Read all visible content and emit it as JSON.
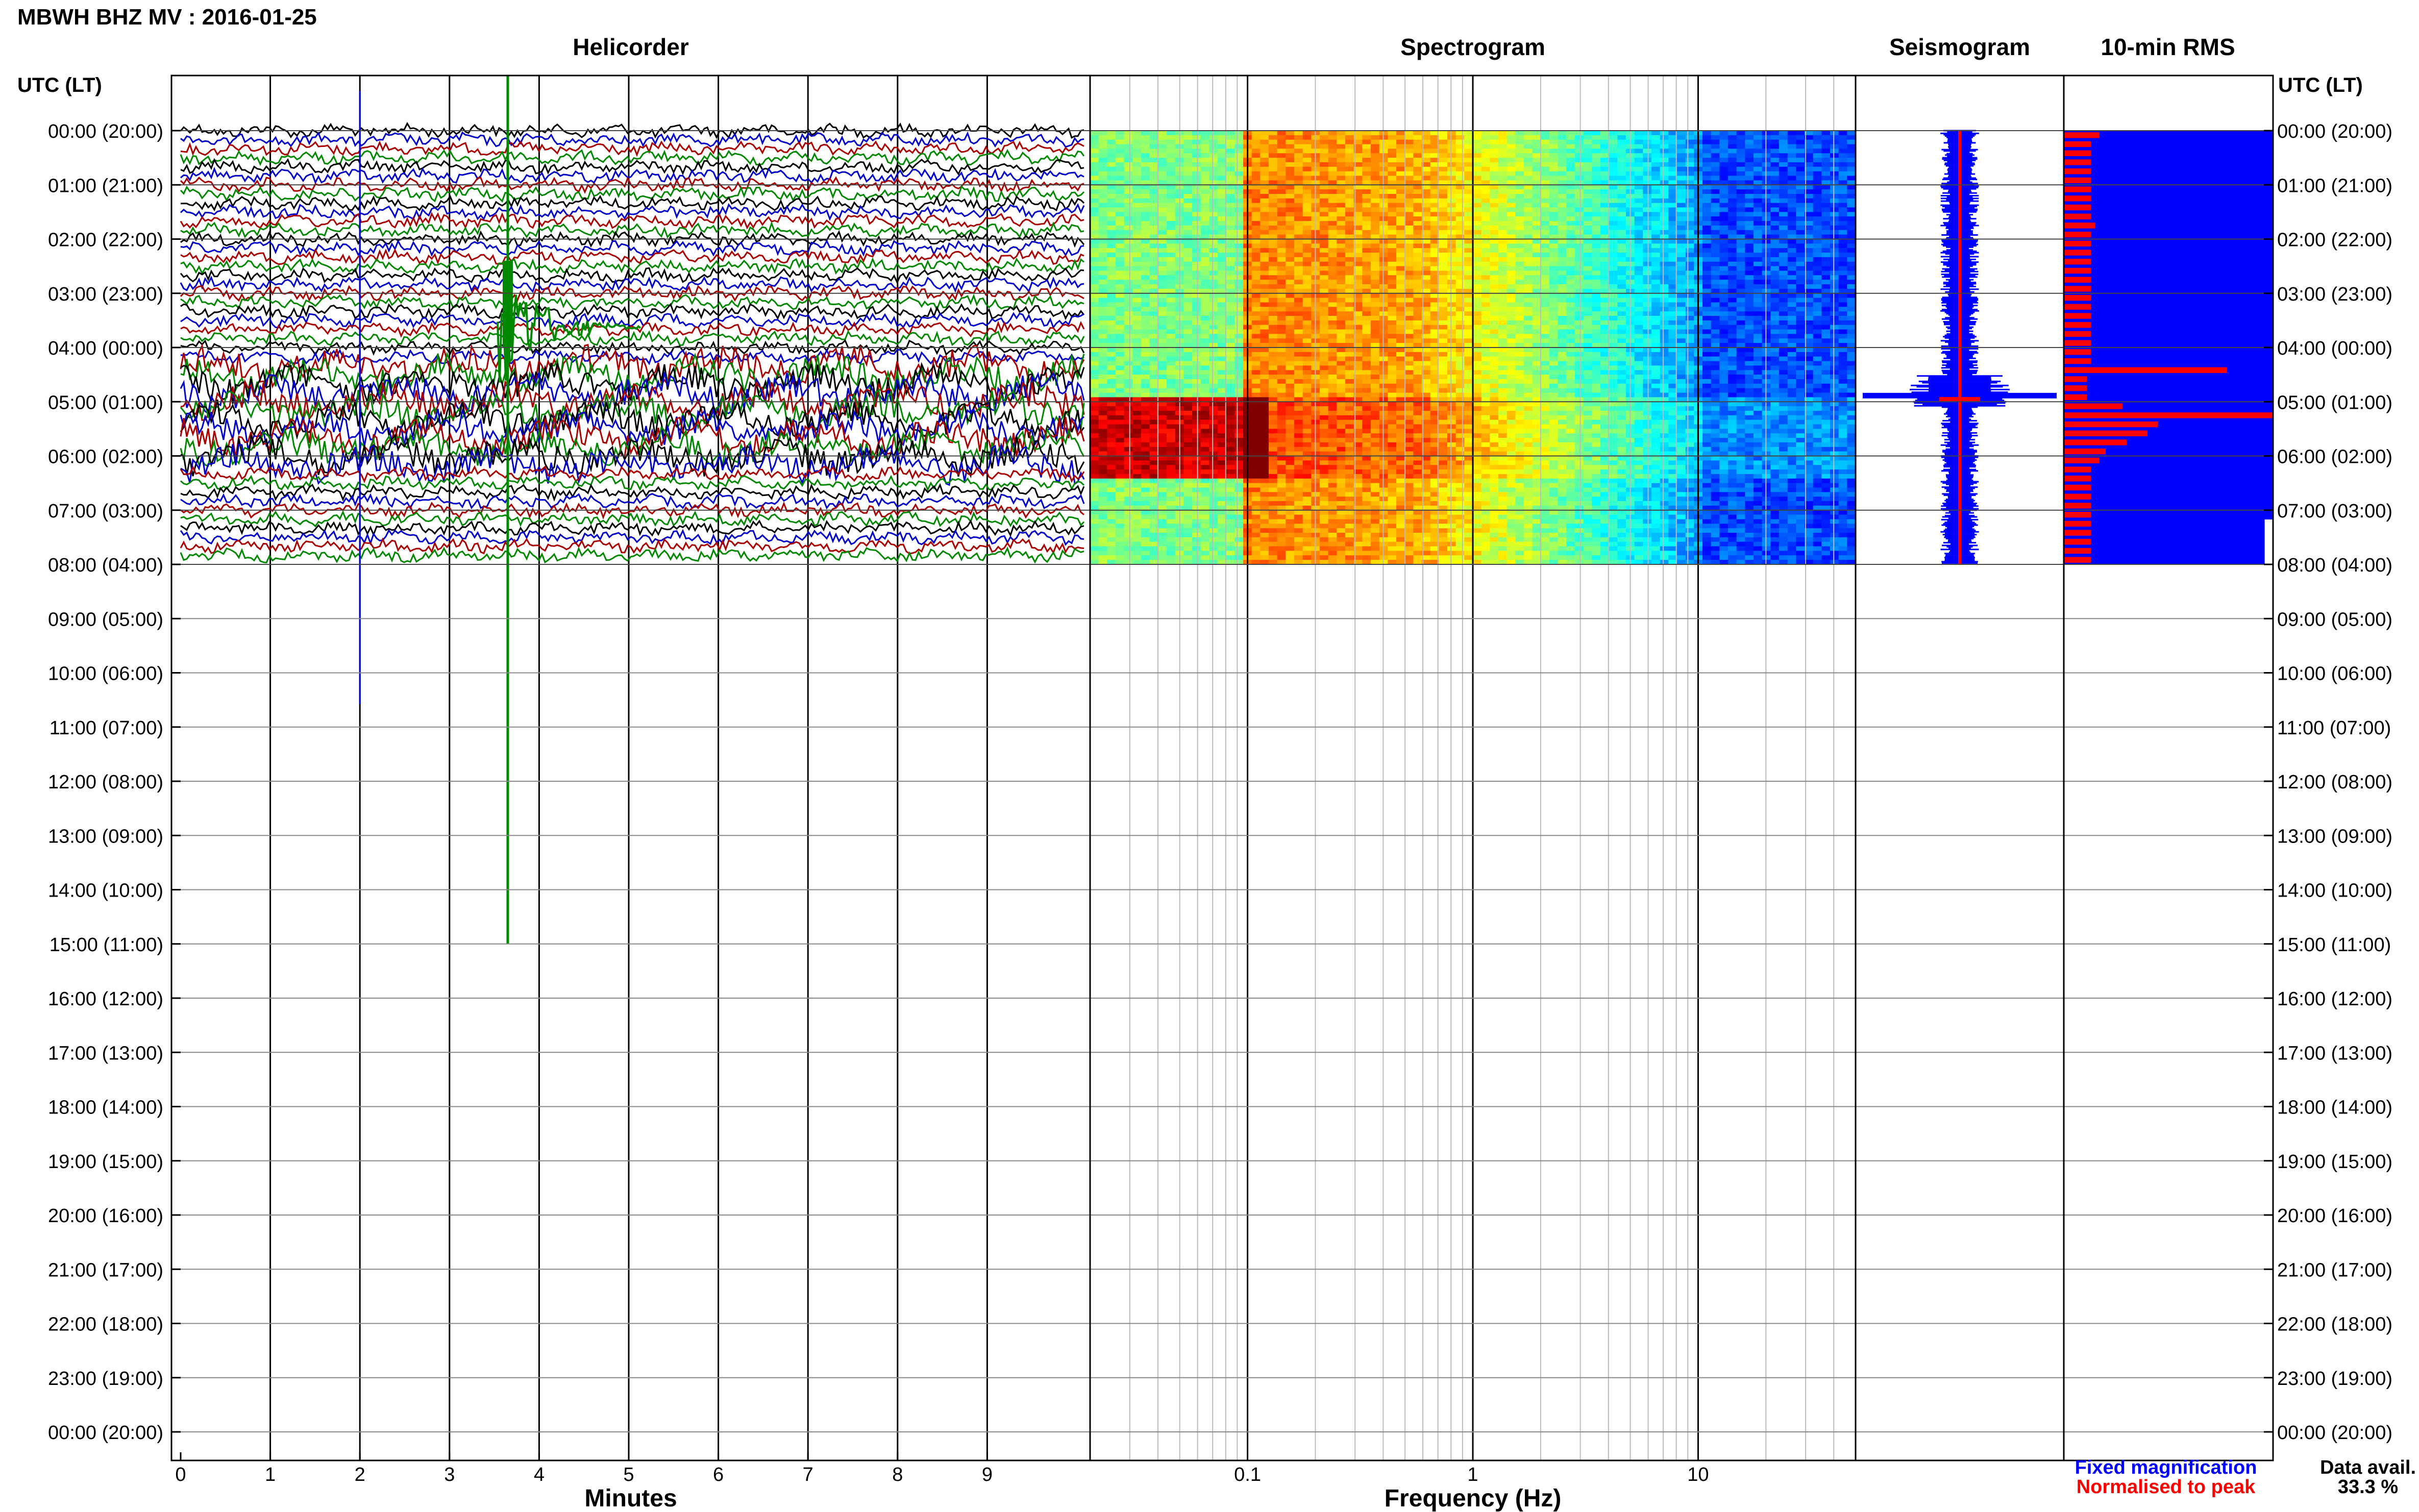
{
  "header": {
    "title": "MBWH BHZ MV : 2016-01-25"
  },
  "panels": {
    "helicorder": "Helicorder",
    "spectrogram": "Spectrogram",
    "seismogram": "Seismogram",
    "rms": "10-min RMS"
  },
  "axes": {
    "left_header": "UTC (LT)",
    "right_header": "UTC (LT)",
    "minutes_label": "Minutes",
    "frequency_label": "Frequency (Hz)",
    "minutes_ticks": [
      "0",
      "1",
      "2",
      "3",
      "4",
      "5",
      "6",
      "7",
      "8",
      "9"
    ],
    "frequency_ticks": [
      "0.1",
      "1",
      "10"
    ]
  },
  "time_labels": [
    "00:00 (20:00)",
    "01:00 (21:00)",
    "02:00 (22:00)",
    "03:00 (23:00)",
    "04:00 (00:00)",
    "05:00 (01:00)",
    "06:00 (02:00)",
    "07:00 (03:00)",
    "08:00 (04:00)",
    "09:00 (05:00)",
    "10:00 (06:00)",
    "11:00 (07:00)",
    "12:00 (08:00)",
    "13:00 (09:00)",
    "14:00 (10:00)",
    "15:00 (11:00)",
    "16:00 (12:00)",
    "17:00 (13:00)",
    "18:00 (14:00)",
    "19:00 (15:00)",
    "20:00 (16:00)",
    "21:00 (17:00)",
    "22:00 (18:00)",
    "23:00 (19:00)",
    "00:00 (20:00)"
  ],
  "legend": {
    "fixed": "Fixed magnification",
    "normalised": "Normalised to peak",
    "fixed_color": "#0000ff",
    "normalised_color": "#ff0000"
  },
  "data_avail": {
    "label": "Data avail.",
    "value": "33.3 %"
  },
  "chart_data": {
    "type": "other",
    "station": "MBWH BHZ MV",
    "date": "2016-01-25",
    "hours_of_data": 8,
    "data_availability_percent": 33.3,
    "helicorder_trace_colors": [
      "#000000",
      "#0000cc",
      "#aa0000",
      "#008800"
    ],
    "event": {
      "minute": 3.65,
      "start_hour": 3.5,
      "trace_color": "#008800"
    },
    "spectrogram_freq_range_hz": [
      0.02,
      50
    ],
    "spectrogram_colormap": "jet",
    "rms_bars_normalised": [
      0.17,
      0.13,
      0.13,
      0.13,
      0.13,
      0.13,
      0.13,
      0.13,
      0.13,
      0.13,
      0.15,
      0.13,
      0.13,
      0.13,
      0.13,
      0.13,
      0.13,
      0.13,
      0.13,
      0.13,
      0.13,
      0.13,
      0.13,
      0.13,
      0.13,
      0.13,
      0.78,
      0.11,
      0.11,
      0.11,
      0.28,
      1.0,
      0.45,
      0.4,
      0.3,
      0.2,
      0.17,
      0.13,
      0.13,
      0.13,
      0.13,
      0.13,
      0.13,
      0.13,
      0.13,
      0.13,
      0.13,
      0.13
    ],
    "rms_fixed_blue_fill": 1.0,
    "colors": {
      "fixed": "#0000ff",
      "normalised": "#ff0000"
    }
  }
}
